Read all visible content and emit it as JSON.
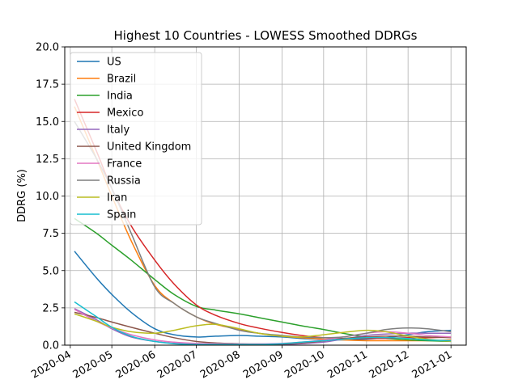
{
  "chart_data": {
    "type": "line",
    "title": "Highest 10 Countries - LOWESS Smoothed DDRGs",
    "xlabel": "",
    "ylabel": "DDRG (%)",
    "ylim": [
      0,
      20
    ],
    "xlim": [
      "2020-03-28",
      "2021-01-12"
    ],
    "yticks": [
      0.0,
      2.5,
      5.0,
      7.5,
      10.0,
      12.5,
      15.0,
      17.5,
      20.0
    ],
    "ytick_labels": [
      "0.0",
      "2.5",
      "5.0",
      "7.5",
      "10.0",
      "12.5",
      "15.0",
      "17.5",
      "20.0"
    ],
    "xticks": [
      "2020-04-01",
      "2020-05-01",
      "2020-06-01",
      "2020-07-01",
      "2020-08-01",
      "2020-09-01",
      "2020-10-01",
      "2020-11-01",
      "2020-12-01",
      "2021-01-01"
    ],
    "xtick_labels": [
      "2020-04",
      "2020-05",
      "2020-06",
      "2020-07",
      "2020-08",
      "2020-09",
      "2020-10",
      "2020-11",
      "2020-12",
      "2021-01"
    ],
    "grid": true,
    "legend_position": "top-left",
    "x": [
      "2020-04-04",
      "2020-04-20",
      "2020-05-01",
      "2020-05-15",
      "2020-06-01",
      "2020-06-15",
      "2020-07-01",
      "2020-07-15",
      "2020-08-01",
      "2020-08-15",
      "2020-09-01",
      "2020-09-15",
      "2020-10-01",
      "2020-10-15",
      "2020-11-01",
      "2020-11-15",
      "2020-12-01",
      "2020-12-15",
      "2021-01-01"
    ],
    "series": [
      {
        "name": "US",
        "color": "#1f77b4",
        "values": [
          6.3,
          4.5,
          3.4,
          2.2,
          1.1,
          0.7,
          0.55,
          0.6,
          0.65,
          0.6,
          0.55,
          0.45,
          0.4,
          0.35,
          0.4,
          0.5,
          0.7,
          0.9,
          1.0
        ]
      },
      {
        "name": "Brazil",
        "color": "#ff7f0e",
        "values": [
          16.0,
          12.5,
          10.0,
          7.0,
          4.0,
          2.8,
          1.9,
          1.4,
          1.05,
          0.8,
          0.6,
          0.5,
          0.4,
          0.35,
          0.3,
          0.3,
          0.3,
          0.3,
          0.35
        ]
      },
      {
        "name": "India",
        "color": "#2ca02c",
        "values": [
          8.5,
          7.5,
          6.7,
          5.7,
          4.4,
          3.4,
          2.6,
          2.35,
          2.1,
          1.85,
          1.55,
          1.3,
          1.05,
          0.8,
          0.55,
          0.45,
          0.35,
          0.3,
          0.25
        ]
      },
      {
        "name": "Mexico",
        "color": "#d62728",
        "values": [
          16.5,
          13.0,
          10.5,
          8.0,
          5.7,
          4.1,
          2.7,
          2.0,
          1.45,
          1.15,
          0.85,
          0.65,
          0.5,
          0.45,
          0.45,
          0.45,
          0.5,
          0.5,
          0.55
        ]
      },
      {
        "name": "Italy",
        "color": "#9467bd",
        "values": [
          2.45,
          1.7,
          1.1,
          0.55,
          0.25,
          0.12,
          0.08,
          0.06,
          0.05,
          0.05,
          0.06,
          0.1,
          0.2,
          0.4,
          0.65,
          0.75,
          0.8,
          0.8,
          0.8
        ]
      },
      {
        "name": "United Kingdom",
        "color": "#8c564b",
        "values": [
          2.2,
          1.85,
          1.55,
          1.2,
          0.8,
          0.5,
          0.25,
          0.15,
          0.1,
          0.08,
          0.08,
          0.15,
          0.28,
          0.45,
          0.55,
          0.6,
          0.6,
          0.55,
          0.5
        ]
      },
      {
        "name": "France",
        "color": "#e377c2",
        "values": [
          2.4,
          1.6,
          1.15,
          0.7,
          0.35,
          0.2,
          0.12,
          0.1,
          0.08,
          0.08,
          0.12,
          0.2,
          0.35,
          0.55,
          0.8,
          0.9,
          0.8,
          0.65,
          0.55
        ]
      },
      {
        "name": "Russia",
        "color": "#7f7f7f",
        "values": [
          15.0,
          12.5,
          10.5,
          7.5,
          3.9,
          2.8,
          1.9,
          1.45,
          1.0,
          0.8,
          0.65,
          0.55,
          0.5,
          0.55,
          0.8,
          1.05,
          1.15,
          1.1,
          0.9
        ]
      },
      {
        "name": "Iran",
        "color": "#bcbd22",
        "values": [
          2.1,
          1.6,
          1.2,
          0.9,
          0.8,
          1.0,
          1.3,
          1.4,
          1.1,
          0.8,
          0.6,
          0.55,
          0.7,
          0.85,
          1.0,
          0.9,
          0.6,
          0.4,
          0.25
        ]
      },
      {
        "name": "Spain",
        "color": "#17becf",
        "values": [
          2.9,
          1.9,
          1.2,
          0.6,
          0.25,
          0.1,
          0.05,
          0.05,
          0.05,
          0.05,
          0.1,
          0.2,
          0.3,
          0.4,
          0.5,
          0.5,
          0.45,
          0.35,
          0.3
        ]
      }
    ]
  }
}
